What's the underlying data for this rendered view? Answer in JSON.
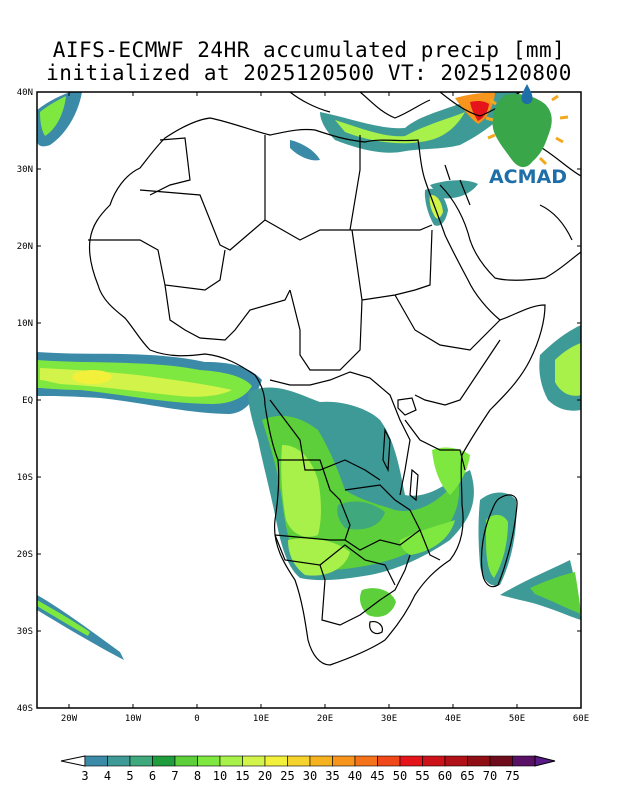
{
  "title": {
    "line1": "AIFS-ECMWF 24HR accumulated precip [mm]",
    "line2": "initialized at 2025120500 VT: 2025120800"
  },
  "map": {
    "lon_range": [
      -25,
      60
    ],
    "lat_range": [
      -40,
      40
    ],
    "lat_ticks": [
      "40N",
      "30N",
      "20N",
      "10N",
      "EQ",
      "10S",
      "20S",
      "30S",
      "40S"
    ],
    "lon_ticks": [
      "20W",
      "10W",
      "0",
      "10E",
      "20E",
      "30E",
      "40E",
      "50E",
      "60E"
    ]
  },
  "logo": {
    "text": "ACMAD"
  },
  "colorbar": {
    "labels": [
      "3",
      "4",
      "5",
      "6",
      "7",
      "8",
      "10",
      "15",
      "20",
      "25",
      "30",
      "35",
      "40",
      "45",
      "50",
      "55",
      "60",
      "65",
      "70",
      "75"
    ],
    "colors": [
      "#3a8aa8",
      "#3e9a96",
      "#3fa87c",
      "#1f9d3c",
      "#5ccf3a",
      "#7ee840",
      "#a8f04a",
      "#d2f34a",
      "#f2f03a",
      "#f6d22c",
      "#f6b21e",
      "#f6941c",
      "#f4721a",
      "#f04818",
      "#e4141a",
      "#cc1218",
      "#b01016",
      "#8e0e14",
      "#6e0c1c",
      "#5a1064"
    ],
    "under_color": "#ffffff",
    "over_color": "#5a1a88"
  }
}
